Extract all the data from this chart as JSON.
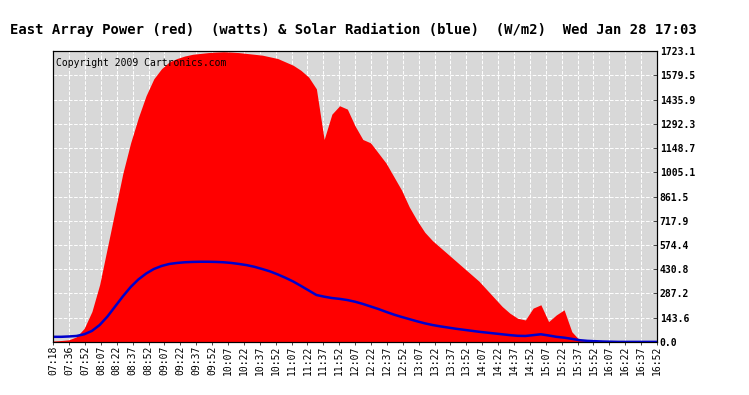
{
  "title": "East Array Power (red)  (watts) & Solar Radiation (blue)  (W/m2)  Wed Jan 28 17:03",
  "copyright": "Copyright 2009 Cartronics.com",
  "y_max": 1723.1,
  "y_ticks": [
    0.0,
    143.6,
    287.2,
    430.8,
    574.4,
    717.9,
    861.5,
    1005.1,
    1148.7,
    1292.3,
    1435.9,
    1579.5,
    1723.1
  ],
  "x_labels": [
    "07:18",
    "07:36",
    "07:52",
    "08:07",
    "08:22",
    "08:37",
    "08:52",
    "09:07",
    "09:22",
    "09:37",
    "09:52",
    "10:07",
    "10:22",
    "10:37",
    "10:52",
    "11:07",
    "11:22",
    "11:37",
    "11:52",
    "12:07",
    "12:22",
    "12:37",
    "12:52",
    "13:07",
    "13:22",
    "13:37",
    "13:52",
    "14:07",
    "14:22",
    "14:37",
    "14:52",
    "15:07",
    "15:22",
    "15:37",
    "15:52",
    "16:07",
    "16:22",
    "16:37",
    "16:52"
  ],
  "bg_color": "#ffffff",
  "plot_bg_color": "#d8d8d8",
  "grid_color": "#ffffff",
  "red_color": "#ff0000",
  "blue_color": "#0000cc",
  "title_fontsize": 10,
  "copyright_fontsize": 7,
  "tick_fontsize": 7,
  "red_data": [
    5,
    8,
    12,
    30,
    80,
    180,
    340,
    560,
    780,
    1000,
    1180,
    1330,
    1460,
    1560,
    1620,
    1660,
    1680,
    1695,
    1705,
    1710,
    1715,
    1718,
    1720,
    1718,
    1715,
    1710,
    1705,
    1700,
    1690,
    1680,
    1660,
    1640,
    1610,
    1570,
    1500,
    1200,
    1350,
    1400,
    1380,
    1280,
    1200,
    1180,
    1120,
    1060,
    980,
    900,
    800,
    720,
    650,
    600,
    560,
    520,
    480,
    440,
    400,
    360,
    310,
    260,
    210,
    170,
    140,
    130,
    200,
    220,
    120,
    160,
    190,
    60,
    10,
    5,
    3,
    2,
    1,
    0,
    0,
    0,
    0,
    0,
    0
  ],
  "blue_data": [
    30,
    30,
    32,
    35,
    45,
    65,
    100,
    150,
    210,
    270,
    325,
    370,
    405,
    432,
    450,
    462,
    468,
    472,
    474,
    475,
    475,
    474,
    472,
    468,
    462,
    455,
    445,
    432,
    418,
    400,
    380,
    358,
    332,
    305,
    278,
    268,
    260,
    255,
    248,
    238,
    225,
    210,
    195,
    178,
    162,
    148,
    135,
    122,
    110,
    100,
    92,
    85,
    78,
    72,
    66,
    60,
    55,
    50,
    45,
    40,
    36,
    35,
    40,
    45,
    38,
    30,
    25,
    18,
    10,
    6,
    4,
    2,
    1,
    0,
    0,
    0,
    0,
    0,
    0
  ]
}
